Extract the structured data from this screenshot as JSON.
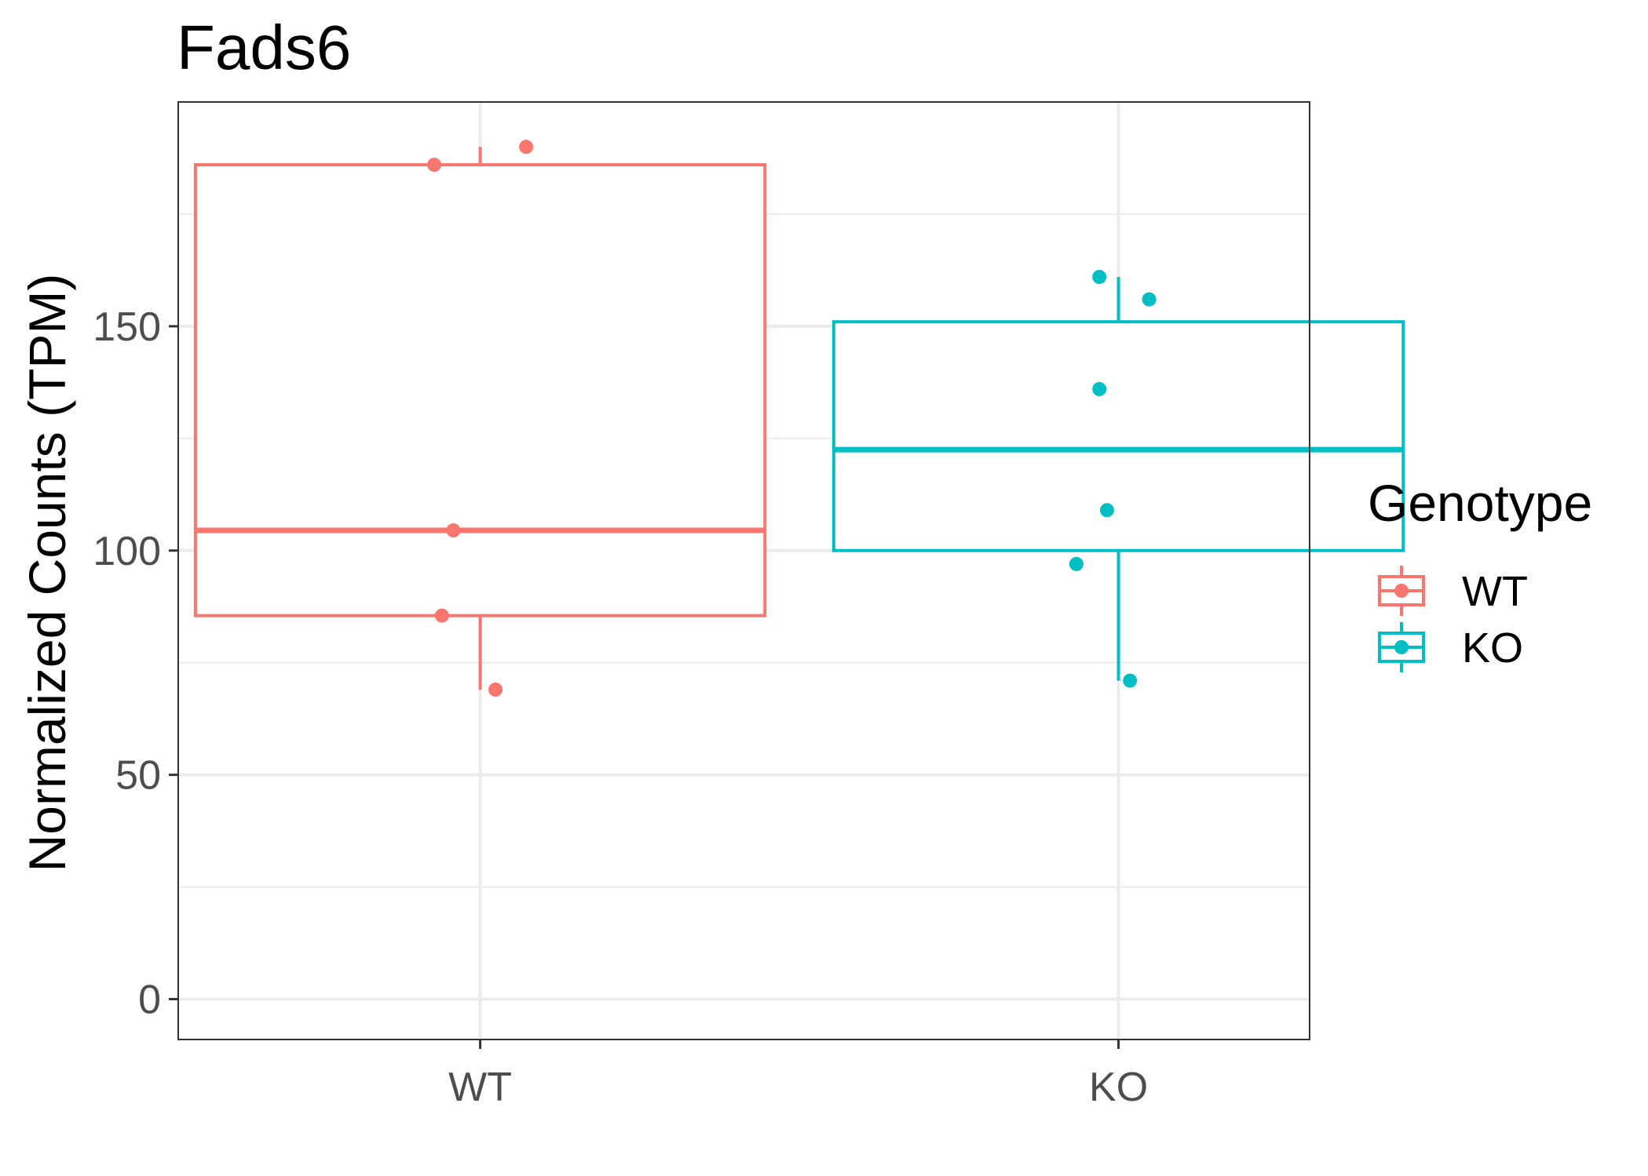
{
  "chart_data": {
    "type": "box",
    "title": "Fads6",
    "xlabel": "",
    "ylabel": "Normalized Counts (TPM)",
    "categories": [
      "WT",
      "KO"
    ],
    "ylim": [
      -9,
      200
    ],
    "yticks": [
      0,
      50,
      100,
      150
    ],
    "grid": true,
    "legend": {
      "title": "Genotype",
      "position": "right",
      "entries": [
        "WT",
        "KO"
      ]
    },
    "series": [
      {
        "name": "WT",
        "color": "#F8766D",
        "box": {
          "whisker_low": 69,
          "q1": 85.5,
          "median": 104.5,
          "q3": 186,
          "whisker_high": 190
        },
        "points": [
          {
            "x": 0.06,
            "y": 190
          },
          {
            "x": -0.06,
            "y": 186
          },
          {
            "x": -0.035,
            "y": 104.5
          },
          {
            "x": -0.05,
            "y": 85.5
          },
          {
            "x": 0.02,
            "y": 69
          }
        ]
      },
      {
        "name": "KO",
        "color": "#00BFC4",
        "box": {
          "whisker_low": 71,
          "q1": 100,
          "median": 122.5,
          "q3": 151,
          "whisker_high": 161
        },
        "points": [
          {
            "x": -0.025,
            "y": 161
          },
          {
            "x": 0.04,
            "y": 156
          },
          {
            "x": -0.025,
            "y": 136
          },
          {
            "x": -0.015,
            "y": 109
          },
          {
            "x": -0.055,
            "y": 97
          },
          {
            "x": 0.015,
            "y": 71
          }
        ]
      }
    ]
  }
}
